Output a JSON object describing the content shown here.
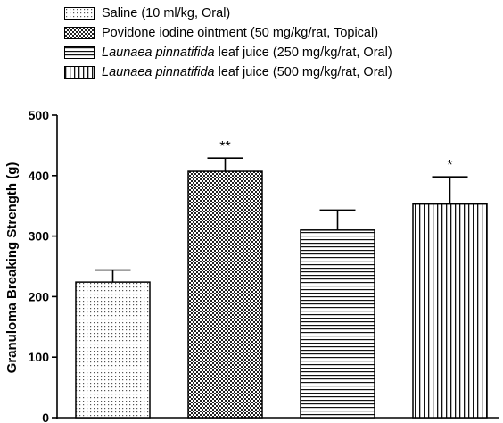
{
  "chart_data": {
    "type": "bar",
    "ylabel": "Granuloma Breaking Strength (g)",
    "ylim": [
      0,
      500
    ],
    "yticks": [
      "0",
      "100",
      "200",
      "300",
      "400",
      "500"
    ],
    "series": [
      {
        "italic": "",
        "name": "Saline (10 ml/kg, Oral)",
        "value": 224,
        "error": 20,
        "significance": "",
        "pattern": "dots"
      },
      {
        "italic": "",
        "name": "Povidone iodine ointment (50 mg/kg/rat, Topical)",
        "value": 407,
        "error": 22,
        "significance": "**",
        "pattern": "checker"
      },
      {
        "italic": "Launaea pinnatifida",
        "name": " leaf juice (250 mg/kg/rat, Oral)",
        "value": 310,
        "error": 33,
        "significance": "",
        "pattern": "hlines"
      },
      {
        "italic": "Launaea pinnatifida",
        "name": " leaf juice (500 mg/kg/rat, Oral)",
        "value": 353,
        "error": 45,
        "significance": "*",
        "pattern": "vlines"
      }
    ]
  }
}
